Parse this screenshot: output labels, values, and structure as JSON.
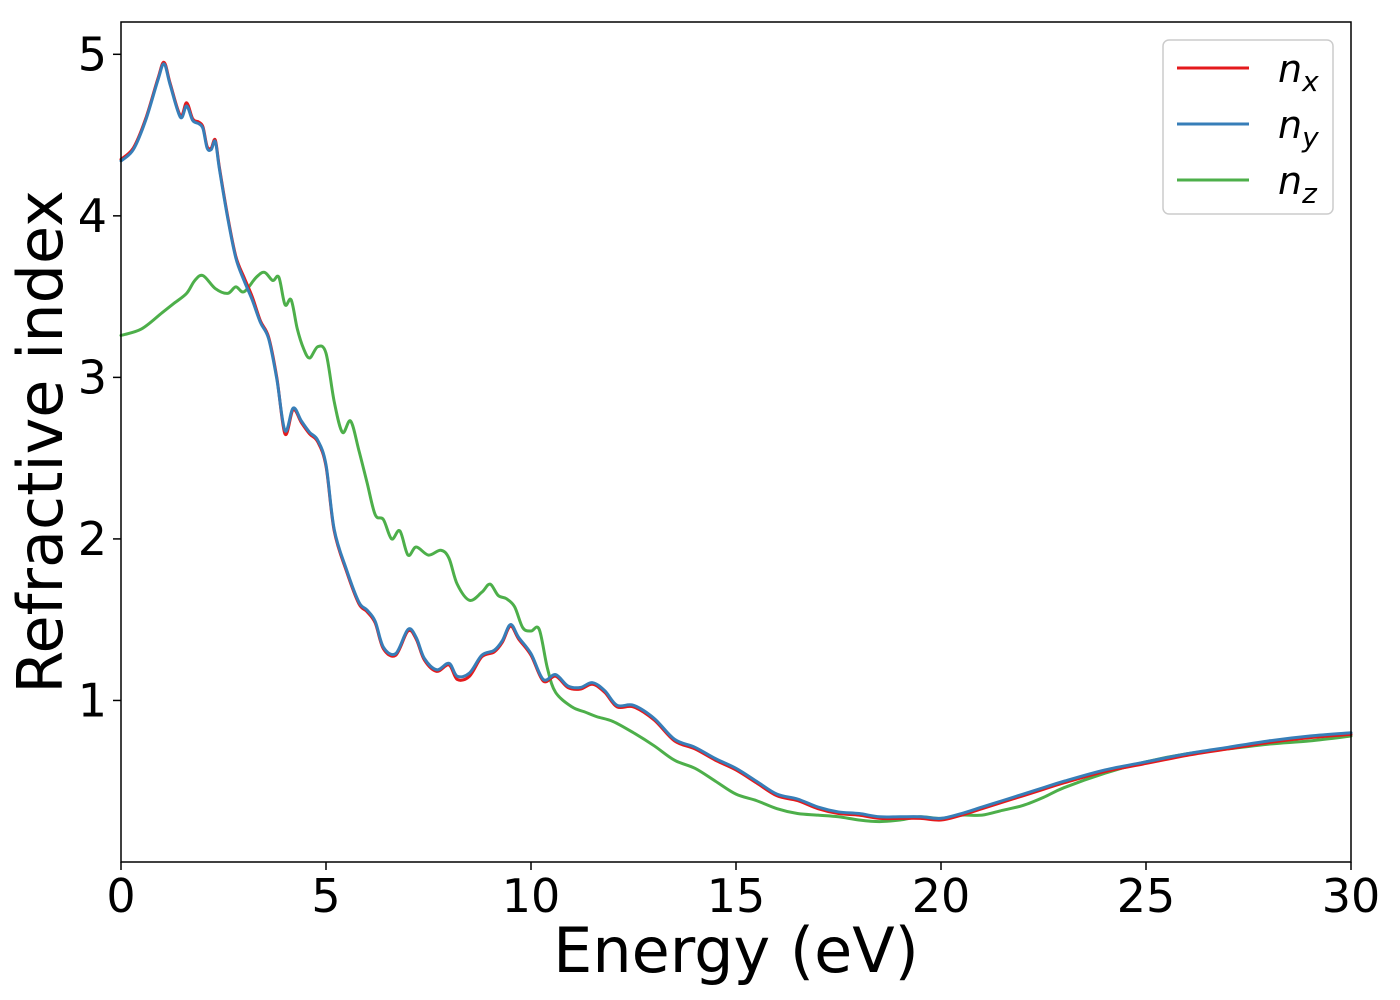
{
  "chart_data": {
    "type": "line",
    "title": "",
    "xlabel": "Energy (eV)",
    "ylabel": "Refractive index",
    "xlim": [
      0,
      30
    ],
    "ylim": [
      0,
      5.2
    ],
    "xticks": [
      0,
      5,
      10,
      15,
      20,
      25,
      30
    ],
    "yticks": [
      1,
      2,
      3,
      4,
      5
    ],
    "grid": false,
    "legend_position": "top-right",
    "series": [
      {
        "name": "n_x",
        "name_base": "n",
        "name_sub": "x",
        "color": "#e41a1c",
        "x": [
          0,
          0.3,
          0.6,
          0.9,
          1.05,
          1.2,
          1.45,
          1.6,
          1.75,
          1.9,
          2.0,
          2.1,
          2.2,
          2.3,
          2.4,
          2.6,
          2.8,
          3.0,
          3.2,
          3.4,
          3.6,
          3.8,
          4.0,
          4.2,
          4.4,
          4.6,
          4.8,
          5.0,
          5.2,
          5.5,
          5.8,
          6.0,
          6.2,
          6.4,
          6.7,
          7.0,
          7.2,
          7.4,
          7.7,
          8.0,
          8.2,
          8.5,
          8.8,
          9.1,
          9.3,
          9.5,
          9.7,
          10.0,
          10.3,
          10.6,
          10.9,
          11.2,
          11.5,
          11.8,
          12.1,
          12.5,
          13.0,
          13.5,
          14.0,
          14.5,
          15.0,
          15.5,
          16.0,
          16.5,
          17.0,
          17.5,
          18.0,
          18.5,
          19.0,
          19.5,
          20.0,
          20.5,
          21.0,
          21.5,
          22.0,
          22.5,
          23.0,
          24.0,
          25.0,
          26.0,
          27.0,
          28.0,
          29.0,
          30.0
        ],
        "y": [
          4.35,
          4.42,
          4.6,
          4.85,
          4.95,
          4.82,
          4.62,
          4.7,
          4.6,
          4.58,
          4.55,
          4.43,
          4.42,
          4.47,
          4.3,
          4.0,
          3.75,
          3.62,
          3.5,
          3.35,
          3.25,
          3.0,
          2.65,
          2.8,
          2.72,
          2.65,
          2.6,
          2.45,
          2.05,
          1.8,
          1.6,
          1.55,
          1.48,
          1.32,
          1.28,
          1.43,
          1.38,
          1.25,
          1.18,
          1.22,
          1.13,
          1.15,
          1.27,
          1.3,
          1.36,
          1.46,
          1.38,
          1.28,
          1.12,
          1.15,
          1.08,
          1.07,
          1.1,
          1.05,
          0.96,
          0.96,
          0.88,
          0.75,
          0.7,
          0.63,
          0.57,
          0.49,
          0.41,
          0.38,
          0.33,
          0.3,
          0.29,
          0.27,
          0.27,
          0.27,
          0.26,
          0.29,
          0.33,
          0.37,
          0.41,
          0.45,
          0.49,
          0.56,
          0.61,
          0.66,
          0.7,
          0.74,
          0.77,
          0.79
        ]
      },
      {
        "name": "n_y",
        "name_base": "n",
        "name_sub": "y",
        "color": "#377eb8",
        "x": [
          0,
          0.3,
          0.6,
          0.9,
          1.05,
          1.2,
          1.45,
          1.6,
          1.75,
          1.9,
          2.0,
          2.1,
          2.2,
          2.3,
          2.4,
          2.6,
          2.8,
          3.0,
          3.2,
          3.4,
          3.6,
          3.8,
          4.0,
          4.2,
          4.4,
          4.6,
          4.8,
          5.0,
          5.2,
          5.5,
          5.8,
          6.0,
          6.2,
          6.4,
          6.7,
          7.0,
          7.2,
          7.4,
          7.7,
          8.0,
          8.2,
          8.5,
          8.8,
          9.1,
          9.3,
          9.5,
          9.7,
          10.0,
          10.3,
          10.6,
          10.9,
          11.2,
          11.5,
          11.8,
          12.1,
          12.5,
          13.0,
          13.5,
          14.0,
          14.5,
          15.0,
          15.5,
          16.0,
          16.5,
          17.0,
          17.5,
          18.0,
          18.5,
          19.0,
          19.5,
          20.0,
          20.5,
          21.0,
          21.5,
          22.0,
          22.5,
          23.0,
          24.0,
          25.0,
          26.0,
          27.0,
          28.0,
          29.0,
          30.0
        ],
        "y": [
          4.34,
          4.41,
          4.59,
          4.84,
          4.94,
          4.81,
          4.61,
          4.68,
          4.59,
          4.57,
          4.54,
          4.42,
          4.41,
          4.46,
          4.29,
          3.99,
          3.74,
          3.6,
          3.48,
          3.34,
          3.24,
          2.99,
          2.67,
          2.81,
          2.73,
          2.66,
          2.61,
          2.46,
          2.06,
          1.81,
          1.61,
          1.56,
          1.49,
          1.33,
          1.29,
          1.44,
          1.39,
          1.26,
          1.19,
          1.23,
          1.15,
          1.17,
          1.28,
          1.31,
          1.37,
          1.47,
          1.39,
          1.29,
          1.13,
          1.16,
          1.09,
          1.08,
          1.11,
          1.06,
          0.97,
          0.97,
          0.89,
          0.76,
          0.71,
          0.64,
          0.58,
          0.5,
          0.42,
          0.39,
          0.34,
          0.31,
          0.3,
          0.28,
          0.28,
          0.28,
          0.27,
          0.3,
          0.34,
          0.38,
          0.42,
          0.46,
          0.5,
          0.57,
          0.62,
          0.67,
          0.71,
          0.75,
          0.78,
          0.8
        ]
      },
      {
        "name": "n_z",
        "name_base": "n",
        "name_sub": "z",
        "color": "#4daf4a",
        "x": [
          0,
          0.5,
          1.0,
          1.3,
          1.6,
          1.8,
          2.0,
          2.3,
          2.6,
          2.8,
          3.0,
          3.3,
          3.5,
          3.7,
          3.85,
          4.0,
          4.15,
          4.3,
          4.45,
          4.6,
          4.8,
          5.0,
          5.2,
          5.4,
          5.6,
          5.8,
          6.0,
          6.2,
          6.4,
          6.6,
          6.8,
          7.0,
          7.2,
          7.5,
          7.8,
          8.0,
          8.2,
          8.5,
          8.8,
          9.0,
          9.2,
          9.4,
          9.6,
          9.8,
          10.0,
          10.2,
          10.4,
          10.6,
          11.0,
          11.3,
          11.6,
          12.0,
          12.5,
          13.0,
          13.5,
          14.0,
          14.5,
          15.0,
          15.5,
          16.0,
          16.5,
          17.0,
          17.5,
          18.0,
          18.5,
          19.0,
          19.5,
          20.0,
          20.5,
          21.0,
          21.5,
          22.0,
          22.5,
          23.0,
          24.0,
          25.0,
          26.0,
          27.0,
          28.0,
          29.0,
          30.0
        ],
        "y": [
          3.26,
          3.3,
          3.4,
          3.46,
          3.52,
          3.6,
          3.63,
          3.55,
          3.52,
          3.56,
          3.53,
          3.62,
          3.65,
          3.6,
          3.62,
          3.45,
          3.48,
          3.3,
          3.18,
          3.12,
          3.19,
          3.15,
          2.85,
          2.66,
          2.73,
          2.55,
          2.35,
          2.15,
          2.12,
          2.0,
          2.05,
          1.9,
          1.95,
          1.9,
          1.93,
          1.88,
          1.72,
          1.62,
          1.67,
          1.72,
          1.65,
          1.63,
          1.58,
          1.45,
          1.43,
          1.44,
          1.2,
          1.05,
          0.96,
          0.93,
          0.9,
          0.87,
          0.8,
          0.72,
          0.63,
          0.58,
          0.5,
          0.42,
          0.38,
          0.33,
          0.3,
          0.29,
          0.28,
          0.26,
          0.25,
          0.26,
          0.28,
          0.27,
          0.29,
          0.29,
          0.32,
          0.35,
          0.4,
          0.46,
          0.55,
          0.62,
          0.67,
          0.7,
          0.73,
          0.75,
          0.78
        ]
      }
    ]
  }
}
